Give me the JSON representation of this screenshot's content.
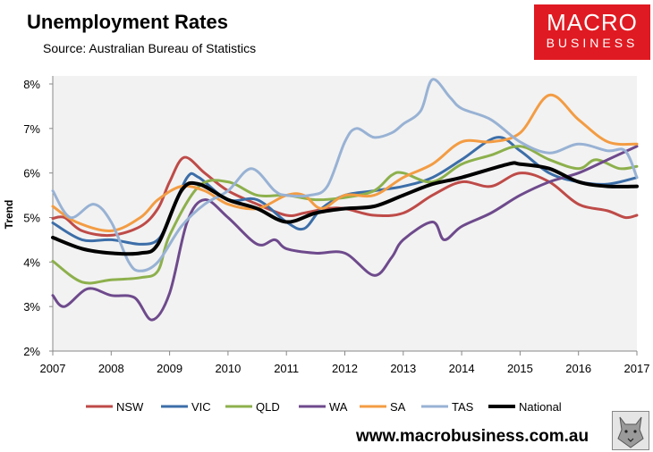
{
  "header": {
    "title": "Unemployment Rates",
    "subtitle": "Source: Australian Bureau of Statistics"
  },
  "logo": {
    "line1": "MACRO",
    "line2": "BUSINESS"
  },
  "footer": {
    "url": "www.macrobusiness.com.au"
  },
  "chart_data": {
    "type": "line",
    "ylabel": "Trend",
    "xlabel": "",
    "xlim": [
      2007,
      2017
    ],
    "ylim": [
      2,
      8
    ],
    "x_ticks": [
      "2007",
      "2008",
      "2009",
      "2010",
      "2011",
      "2012",
      "2013",
      "2014",
      "2015",
      "2016",
      "2017"
    ],
    "y_ticks": [
      "2%",
      "3%",
      "4%",
      "5%",
      "6%",
      "7%",
      "8%"
    ],
    "grid": false,
    "legend_position": "bottom",
    "series": [
      {
        "name": "NSW",
        "color": "#be4b48",
        "points": [
          [
            2007,
            4.98
          ],
          [
            2007.2,
            5.0
          ],
          [
            2007.5,
            4.7
          ],
          [
            2008,
            4.6
          ],
          [
            2008.5,
            4.8
          ],
          [
            2008.8,
            5.2
          ],
          [
            2009,
            5.8
          ],
          [
            2009.25,
            6.35
          ],
          [
            2009.6,
            6.0
          ],
          [
            2010,
            5.6
          ],
          [
            2010.5,
            5.3
          ],
          [
            2011,
            5.05
          ],
          [
            2011.3,
            5.1
          ],
          [
            2011.7,
            5.2
          ],
          [
            2012,
            5.2
          ],
          [
            2012.5,
            5.05
          ],
          [
            2013,
            5.1
          ],
          [
            2013.5,
            5.5
          ],
          [
            2014,
            5.8
          ],
          [
            2014.5,
            5.7
          ],
          [
            2015,
            6.0
          ],
          [
            2015.5,
            5.8
          ],
          [
            2016,
            5.3
          ],
          [
            2016.5,
            5.15
          ],
          [
            2016.8,
            5.0
          ],
          [
            2017,
            5.05
          ]
        ]
      },
      {
        "name": "VIC",
        "color": "#3c6ea8",
        "points": [
          [
            2007,
            4.88
          ],
          [
            2007.5,
            4.5
          ],
          [
            2008,
            4.5
          ],
          [
            2008.5,
            4.4
          ],
          [
            2008.8,
            4.5
          ],
          [
            2009,
            5.0
          ],
          [
            2009.3,
            5.9
          ],
          [
            2009.5,
            5.9
          ],
          [
            2010,
            5.4
          ],
          [
            2010.5,
            5.4
          ],
          [
            2011,
            4.9
          ],
          [
            2011.3,
            4.75
          ],
          [
            2011.6,
            5.2
          ],
          [
            2012,
            5.5
          ],
          [
            2012.5,
            5.6
          ],
          [
            2013,
            5.7
          ],
          [
            2013.5,
            5.9
          ],
          [
            2014,
            6.3
          ],
          [
            2014.6,
            6.8
          ],
          [
            2015,
            6.5
          ],
          [
            2015.5,
            6.0
          ],
          [
            2016,
            5.8
          ],
          [
            2016.5,
            5.75
          ],
          [
            2017,
            5.9
          ]
        ]
      },
      {
        "name": "QLD",
        "color": "#8db04c",
        "points": [
          [
            2007,
            4.02
          ],
          [
            2007.5,
            3.55
          ],
          [
            2008,
            3.6
          ],
          [
            2008.5,
            3.65
          ],
          [
            2008.8,
            3.8
          ],
          [
            2009,
            4.6
          ],
          [
            2009.5,
            5.7
          ],
          [
            2010,
            5.8
          ],
          [
            2010.5,
            5.5
          ],
          [
            2011,
            5.5
          ],
          [
            2011.5,
            5.4
          ],
          [
            2012,
            5.45
          ],
          [
            2012.5,
            5.6
          ],
          [
            2012.8,
            5.95
          ],
          [
            2013,
            6.0
          ],
          [
            2013.5,
            5.8
          ],
          [
            2014,
            6.2
          ],
          [
            2014.5,
            6.4
          ],
          [
            2015,
            6.6
          ],
          [
            2015.5,
            6.3
          ],
          [
            2016,
            6.1
          ],
          [
            2016.3,
            6.3
          ],
          [
            2016.7,
            6.1
          ],
          [
            2017,
            6.15
          ]
        ]
      },
      {
        "name": "WA",
        "color": "#6e4a8c",
        "points": [
          [
            2007,
            3.25
          ],
          [
            2007.2,
            3.0
          ],
          [
            2007.6,
            3.4
          ],
          [
            2008,
            3.25
          ],
          [
            2008.4,
            3.2
          ],
          [
            2008.7,
            2.7
          ],
          [
            2009,
            3.3
          ],
          [
            2009.3,
            4.9
          ],
          [
            2009.6,
            5.4
          ],
          [
            2010,
            5.0
          ],
          [
            2010.5,
            4.4
          ],
          [
            2010.8,
            4.5
          ],
          [
            2011,
            4.3
          ],
          [
            2011.5,
            4.2
          ],
          [
            2012,
            4.2
          ],
          [
            2012.5,
            3.7
          ],
          [
            2012.8,
            4.1
          ],
          [
            2013,
            4.5
          ],
          [
            2013.5,
            4.9
          ],
          [
            2013.7,
            4.5
          ],
          [
            2014,
            4.8
          ],
          [
            2014.5,
            5.1
          ],
          [
            2015,
            5.5
          ],
          [
            2015.5,
            5.8
          ],
          [
            2016,
            6.0
          ],
          [
            2016.5,
            6.3
          ],
          [
            2017,
            6.6
          ]
        ]
      },
      {
        "name": "SA",
        "color": "#f39c43",
        "points": [
          [
            2007,
            5.25
          ],
          [
            2007.4,
            4.9
          ],
          [
            2008,
            4.7
          ],
          [
            2008.5,
            5.0
          ],
          [
            2008.8,
            5.4
          ],
          [
            2009.2,
            5.7
          ],
          [
            2009.6,
            5.6
          ],
          [
            2010,
            5.3
          ],
          [
            2010.5,
            5.2
          ],
          [
            2011,
            5.5
          ],
          [
            2011.3,
            5.5
          ],
          [
            2011.6,
            5.2
          ],
          [
            2012,
            5.5
          ],
          [
            2012.5,
            5.5
          ],
          [
            2013,
            5.9
          ],
          [
            2013.5,
            6.2
          ],
          [
            2014,
            6.7
          ],
          [
            2014.5,
            6.7
          ],
          [
            2015,
            6.9
          ],
          [
            2015.5,
            7.75
          ],
          [
            2016,
            7.2
          ],
          [
            2016.5,
            6.7
          ],
          [
            2017,
            6.65
          ]
        ]
      },
      {
        "name": "TAS",
        "color": "#98b2d4",
        "points": [
          [
            2007,
            5.6
          ],
          [
            2007.3,
            5.0
          ],
          [
            2007.7,
            5.3
          ],
          [
            2008,
            4.9
          ],
          [
            2008.3,
            4.0
          ],
          [
            2008.5,
            3.8
          ],
          [
            2008.8,
            4.0
          ],
          [
            2009.2,
            4.8
          ],
          [
            2009.6,
            5.3
          ],
          [
            2010,
            5.6
          ],
          [
            2010.4,
            6.1
          ],
          [
            2010.8,
            5.6
          ],
          [
            2011,
            5.5
          ],
          [
            2011.4,
            5.5
          ],
          [
            2011.7,
            5.7
          ],
          [
            2012,
            6.7
          ],
          [
            2012.2,
            7.0
          ],
          [
            2012.5,
            6.8
          ],
          [
            2012.8,
            6.9
          ],
          [
            2013,
            7.1
          ],
          [
            2013.3,
            7.4
          ],
          [
            2013.5,
            8.1
          ],
          [
            2013.8,
            7.7
          ],
          [
            2014,
            7.45
          ],
          [
            2014.5,
            7.2
          ],
          [
            2015,
            6.7
          ],
          [
            2015.5,
            6.45
          ],
          [
            2016,
            6.65
          ],
          [
            2016.5,
            6.5
          ],
          [
            2016.8,
            6.5
          ],
          [
            2017,
            5.9
          ]
        ]
      },
      {
        "name": "National",
        "color": "#000000",
        "points": [
          [
            2007,
            4.55
          ],
          [
            2007.5,
            4.3
          ],
          [
            2008,
            4.2
          ],
          [
            2008.5,
            4.2
          ],
          [
            2008.8,
            4.4
          ],
          [
            2009.2,
            5.6
          ],
          [
            2009.5,
            5.75
          ],
          [
            2010,
            5.4
          ],
          [
            2010.5,
            5.2
          ],
          [
            2011,
            4.9
          ],
          [
            2011.5,
            5.1
          ],
          [
            2012,
            5.2
          ],
          [
            2012.5,
            5.25
          ],
          [
            2013,
            5.5
          ],
          [
            2013.5,
            5.75
          ],
          [
            2014,
            5.9
          ],
          [
            2014.8,
            6.2
          ],
          [
            2015,
            6.2
          ],
          [
            2015.5,
            6.1
          ],
          [
            2016,
            5.8
          ],
          [
            2016.5,
            5.7
          ],
          [
            2017,
            5.7
          ]
        ]
      }
    ]
  }
}
